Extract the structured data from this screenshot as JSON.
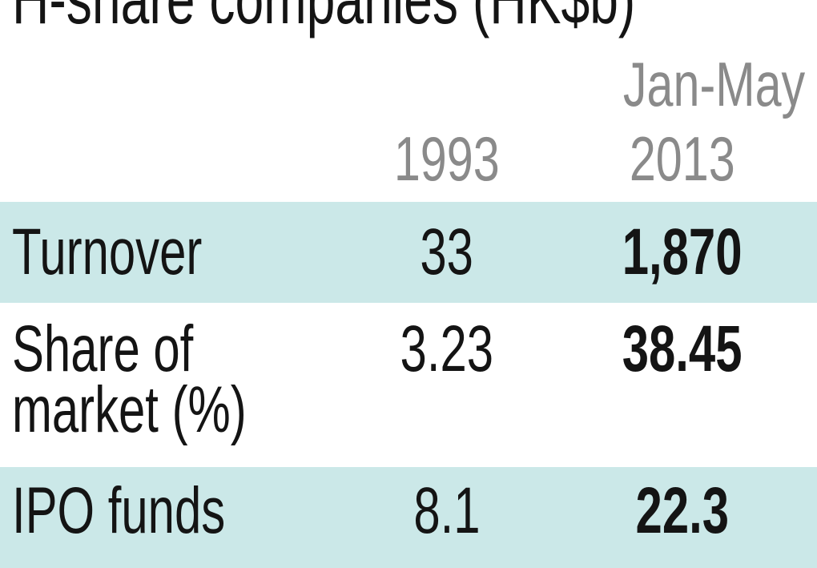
{
  "title": "H-share companies (HK$b)",
  "header": {
    "period": "Jan-May",
    "col1": "1993",
    "col2": "2013"
  },
  "table": {
    "rows": [
      {
        "label": "Turnover",
        "v1993": "33",
        "v2013": "1,870"
      },
      {
        "label": "Share of market (%)",
        "label_line1": "Share of",
        "label_line2": "market (%)",
        "v1993": "3.23",
        "v2013": "38.45"
      },
      {
        "label": "IPO funds",
        "v1993": "8.1",
        "v2013": "22.3"
      }
    ]
  },
  "colors": {
    "band": "#cbe8e8",
    "header_text": "#8a8a8a",
    "text": "#141414",
    "background": "#ffffff"
  },
  "chart_data": {
    "type": "table",
    "title": "H-share companies (HK$b)",
    "columns": [
      "",
      "1993",
      "Jan-May 2013"
    ],
    "rows": [
      [
        "Turnover",
        33,
        1870
      ],
      [
        "Share of market (%)",
        3.23,
        38.45
      ],
      [
        "IPO funds",
        8.1,
        22.3
      ]
    ]
  }
}
